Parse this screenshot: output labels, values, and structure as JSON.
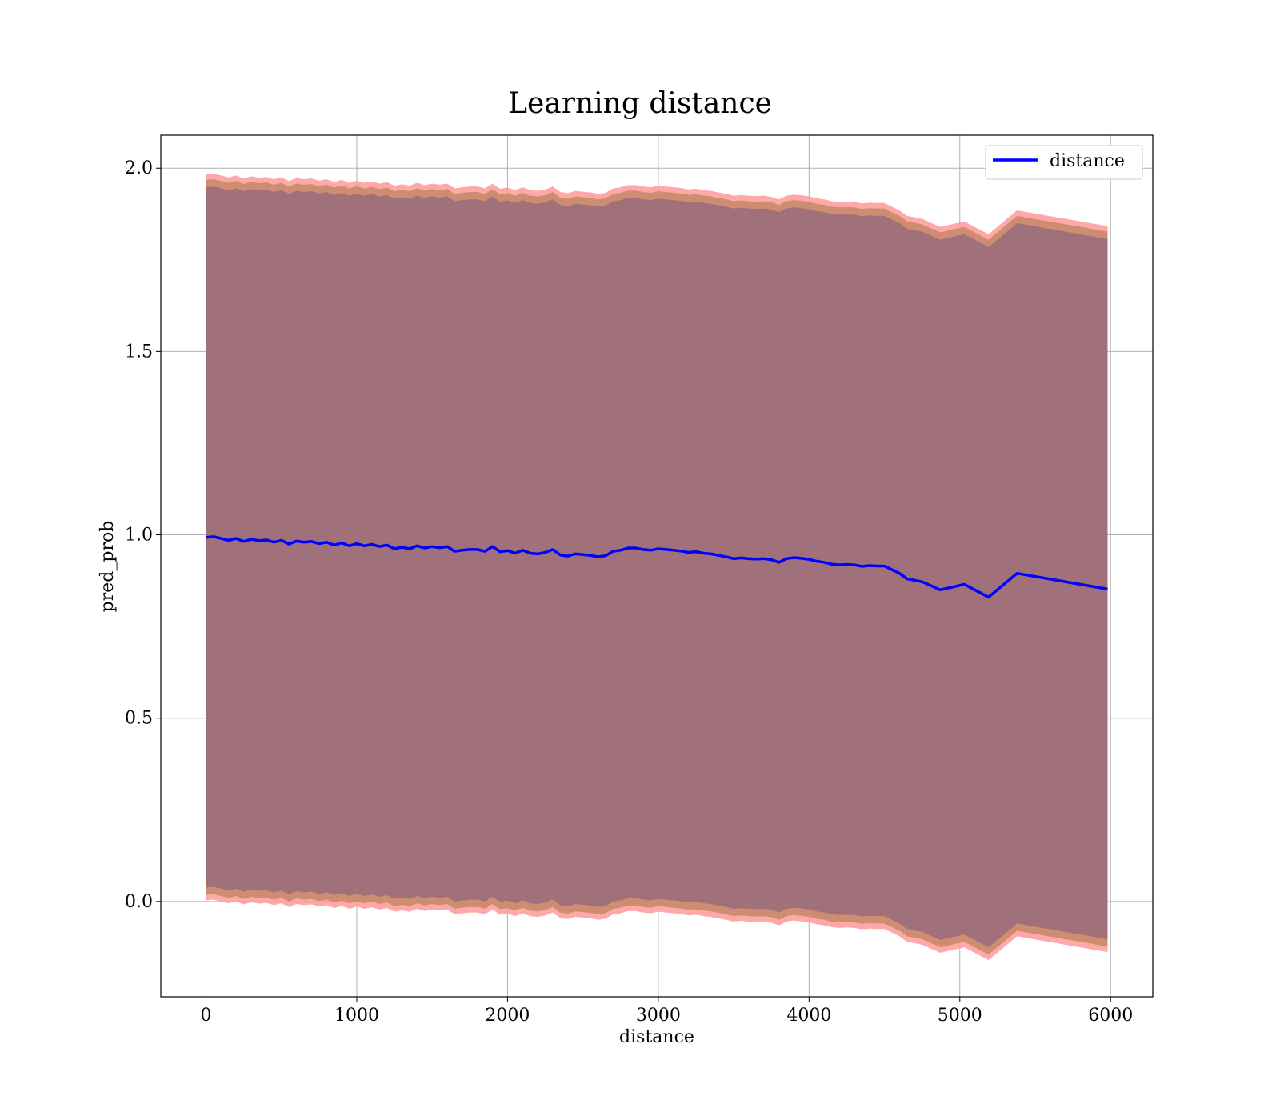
{
  "chart_data": {
    "type": "line",
    "title": "Learning distance",
    "xlabel": "distance",
    "ylabel": "pred_prob",
    "xlim": [
      -300,
      6280
    ],
    "ylim": [
      -0.26,
      2.09
    ],
    "xticks": [
      0,
      1000,
      2000,
      3000,
      4000,
      5000,
      6000
    ],
    "xtick_labels": [
      "0",
      "1000",
      "2000",
      "3000",
      "4000",
      "5000",
      "6000"
    ],
    "yticks": [
      0.0,
      0.5,
      1.0,
      1.5,
      2.0
    ],
    "ytick_labels": [
      "0.0",
      "0.5",
      "1.0",
      "1.5",
      "2.0"
    ],
    "grid": true,
    "legend": {
      "position": "upper right",
      "entries": [
        "distance"
      ]
    },
    "colors": {
      "line": "#0000ff",
      "band_outer": "#ff9999",
      "band_mid": "#c98a6a",
      "band_inner": "#a0717a",
      "grid": "#b0b0b0"
    },
    "series": [
      {
        "name": "distance",
        "x": [
          0,
          50,
          100,
          150,
          200,
          250,
          300,
          350,
          400,
          450,
          500,
          550,
          600,
          650,
          700,
          750,
          800,
          850,
          900,
          950,
          1000,
          1050,
          1100,
          1150,
          1200,
          1250,
          1300,
          1350,
          1400,
          1450,
          1500,
          1550,
          1600,
          1650,
          1700,
          1750,
          1800,
          1850,
          1900,
          1950,
          2000,
          2050,
          2100,
          2150,
          2200,
          2250,
          2300,
          2350,
          2400,
          2450,
          2500,
          2550,
          2600,
          2650,
          2700,
          2750,
          2800,
          2850,
          2900,
          2950,
          3000,
          3050,
          3100,
          3150,
          3200,
          3250,
          3300,
          3350,
          3400,
          3450,
          3500,
          3550,
          3600,
          3650,
          3700,
          3750,
          3800,
          3850,
          3900,
          3950,
          4000,
          4050,
          4100,
          4150,
          4200,
          4250,
          4300,
          4350,
          4400,
          4450,
          4500,
          4550,
          4600,
          4650,
          4750,
          4870,
          5030,
          5190,
          5380,
          5980
        ],
        "y": [
          0.993,
          0.995,
          0.99,
          0.985,
          0.99,
          0.982,
          0.988,
          0.984,
          0.986,
          0.98,
          0.985,
          0.975,
          0.983,
          0.98,
          0.982,
          0.976,
          0.98,
          0.972,
          0.978,
          0.97,
          0.976,
          0.97,
          0.974,
          0.968,
          0.972,
          0.962,
          0.966,
          0.962,
          0.97,
          0.964,
          0.968,
          0.965,
          0.968,
          0.955,
          0.958,
          0.96,
          0.96,
          0.955,
          0.968,
          0.954,
          0.957,
          0.95,
          0.958,
          0.95,
          0.948,
          0.952,
          0.96,
          0.945,
          0.942,
          0.948,
          0.946,
          0.944,
          0.94,
          0.943,
          0.955,
          0.958,
          0.964,
          0.964,
          0.96,
          0.958,
          0.962,
          0.96,
          0.958,
          0.956,
          0.952,
          0.954,
          0.95,
          0.948,
          0.944,
          0.94,
          0.935,
          0.937,
          0.935,
          0.934,
          0.935,
          0.932,
          0.925,
          0.935,
          0.938,
          0.936,
          0.933,
          0.928,
          0.925,
          0.92,
          0.918,
          0.919,
          0.918,
          0.914,
          0.916,
          0.915,
          0.915,
          0.905,
          0.895,
          0.88,
          0.872,
          0.85,
          0.865,
          0.83,
          0.895,
          0.852
        ],
        "band_outer_half_width": 0.99,
        "band_mid_half_width": 0.975,
        "band_inner_half_width": 0.955
      }
    ]
  }
}
